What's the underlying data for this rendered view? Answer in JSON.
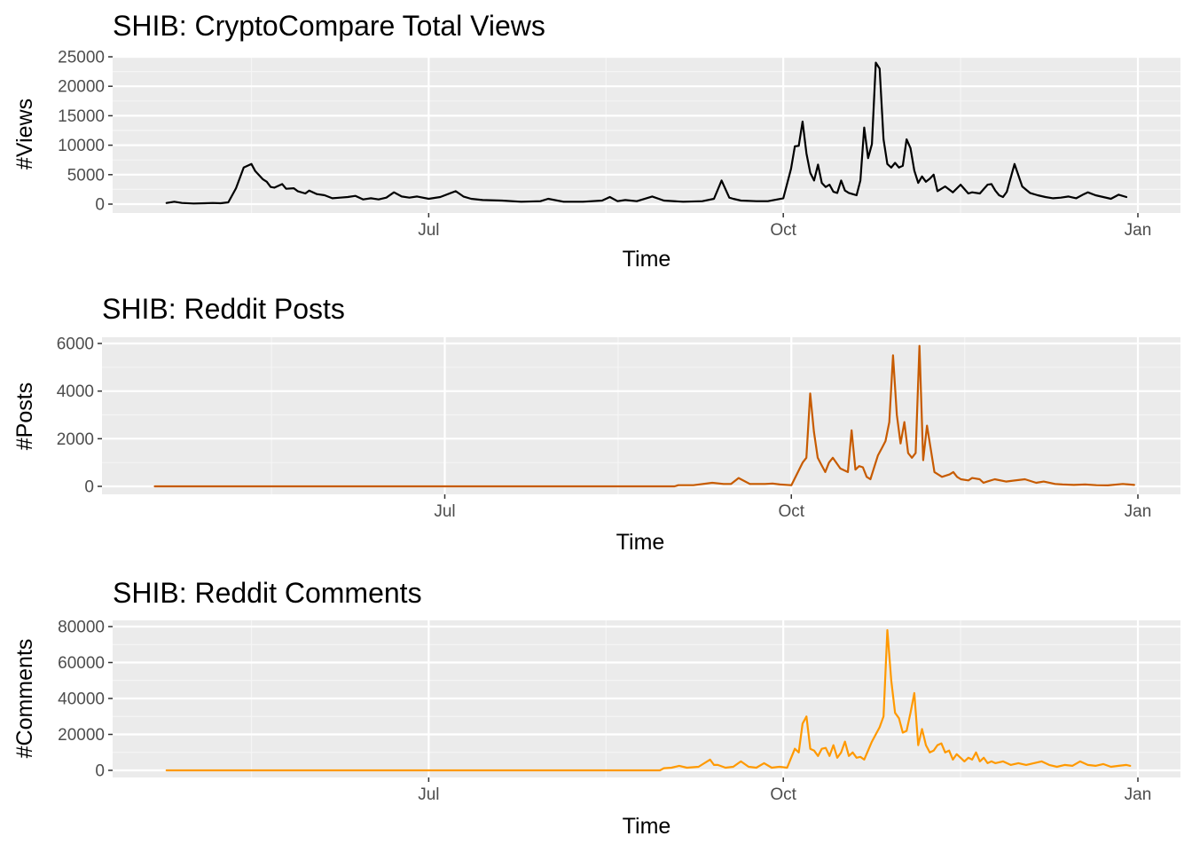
{
  "palette": {
    "panel_bg": "#ebebeb",
    "grid_major": "#ffffff",
    "grid_minor": "#f5f5f5",
    "tick_mark": "#333333"
  },
  "chart_data": [
    {
      "type": "line",
      "title": "SHIB: CryptoCompare Total Views",
      "xlabel": "Time",
      "ylabel": "#Views",
      "color": "#000000",
      "x_range": [
        "2021-04-10",
        "2022-01-01"
      ],
      "x_ticks": [
        {
          "date": "2021-07-01",
          "label": "Jul"
        },
        {
          "date": "2021-10-01",
          "label": "Oct"
        },
        {
          "date": "2022-01-01",
          "label": "Jan"
        }
      ],
      "ylim": [
        0,
        25000
      ],
      "y_ticks": [
        {
          "value": 0,
          "label": "0"
        },
        {
          "value": 5000,
          "label": "5000"
        },
        {
          "value": 10000,
          "label": "10000"
        },
        {
          "value": 15000,
          "label": "15000"
        },
        {
          "value": 20000,
          "label": "20000"
        },
        {
          "value": 25000,
          "label": "25000"
        }
      ],
      "series": [
        {
          "x": [
            "2021-04-24",
            "2021-04-26",
            "2021-04-28",
            "2021-05-01",
            "2021-05-04",
            "2021-05-06",
            "2021-05-08",
            "2021-05-10",
            "2021-05-12",
            "2021-05-14",
            "2021-05-16",
            "2021-05-17",
            "2021-05-19",
            "2021-05-20",
            "2021-05-21",
            "2021-05-22",
            "2021-05-24",
            "2021-05-25",
            "2021-05-27",
            "2021-05-28",
            "2021-05-30",
            "2021-05-31",
            "2021-06-02",
            "2021-06-04",
            "2021-06-06",
            "2021-06-08",
            "2021-06-10",
            "2021-06-12",
            "2021-06-14",
            "2021-06-16",
            "2021-06-18",
            "2021-06-20",
            "2021-06-22",
            "2021-06-24",
            "2021-06-26",
            "2021-06-28",
            "2021-07-01",
            "2021-07-04",
            "2021-07-08",
            "2021-07-10",
            "2021-07-12",
            "2021-07-15",
            "2021-07-20",
            "2021-07-25",
            "2021-07-30",
            "2021-08-01",
            "2021-08-05",
            "2021-08-10",
            "2021-08-15",
            "2021-08-17",
            "2021-08-19",
            "2021-08-21",
            "2021-08-24",
            "2021-08-28",
            "2021-08-31",
            "2021-09-05",
            "2021-09-10",
            "2021-09-13",
            "2021-09-15",
            "2021-09-17",
            "2021-09-18",
            "2021-09-20",
            "2021-09-24",
            "2021-09-27",
            "2021-10-01",
            "2021-10-03",
            "2021-10-04",
            "2021-10-05",
            "2021-10-06",
            "2021-10-07",
            "2021-10-08",
            "2021-10-09",
            "2021-10-10",
            "2021-10-11",
            "2021-10-12",
            "2021-10-13",
            "2021-10-14",
            "2021-10-15",
            "2021-10-16",
            "2021-10-17",
            "2021-10-18",
            "2021-10-19",
            "2021-10-20",
            "2021-10-21",
            "2021-10-22",
            "2021-10-23",
            "2021-10-24",
            "2021-10-25",
            "2021-10-26",
            "2021-10-27",
            "2021-10-28",
            "2021-10-29",
            "2021-10-30",
            "2021-10-31",
            "2021-11-01",
            "2021-11-02",
            "2021-11-03",
            "2021-11-04",
            "2021-11-05",
            "2021-11-06",
            "2021-11-07",
            "2021-11-08",
            "2021-11-09",
            "2021-11-10",
            "2021-11-12",
            "2021-11-14",
            "2021-11-16",
            "2021-11-18",
            "2021-11-19",
            "2021-11-21",
            "2021-11-23",
            "2021-11-24",
            "2021-11-25",
            "2021-11-26",
            "2021-11-27",
            "2021-11-28",
            "2021-11-30",
            "2021-12-02",
            "2021-12-04",
            "2021-12-06",
            "2021-12-08",
            "2021-12-10",
            "2021-12-12",
            "2021-12-14",
            "2021-12-16",
            "2021-12-18",
            "2021-12-19",
            "2021-12-21",
            "2021-12-23",
            "2021-12-25",
            "2021-12-27",
            "2021-12-29"
          ],
          "y": [
            200,
            400,
            200,
            100,
            150,
            200,
            150,
            300,
            2700,
            6200,
            6800,
            5600,
            4200,
            3800,
            2900,
            2800,
            3400,
            2600,
            2700,
            2200,
            1800,
            2300,
            1700,
            1500,
            1000,
            1100,
            1200,
            1400,
            800,
            1000,
            800,
            1100,
            2000,
            1300,
            1100,
            1300,
            900,
            1200,
            2200,
            1300,
            900,
            700,
            600,
            400,
            500,
            900,
            400,
            400,
            600,
            1200,
            500,
            700,
            500,
            1300,
            600,
            400,
            500,
            900,
            4000,
            1100,
            900,
            600,
            500,
            500,
            1000,
            6000,
            9800,
            9900,
            14000,
            8600,
            5300,
            4000,
            6700,
            3600,
            2900,
            3300,
            2100,
            1900,
            4000,
            2300,
            1900,
            1700,
            1500,
            4000,
            13000,
            7800,
            10200,
            24000,
            23000,
            11000,
            6800,
            6200,
            7000,
            6200,
            6500,
            11000,
            9500,
            5700,
            3600,
            4700,
            3800,
            4300,
            5000,
            2200,
            3000,
            2000,
            3300,
            1800,
            2000,
            1800,
            3300,
            3400,
            2300,
            1500,
            1200,
            2100,
            6800,
            3000,
            1900,
            1500,
            1200,
            1000,
            1100,
            1300,
            1000,
            1700,
            2000,
            1500,
            1200,
            900,
            1600,
            1200
          ]
        }
      ]
    },
    {
      "type": "line",
      "title": "SHIB: Reddit Posts",
      "xlabel": "Time",
      "ylabel": "#Posts",
      "color": "#c75b00",
      "x_range": [
        "2021-04-01",
        "2022-01-01"
      ],
      "x_ticks": [
        {
          "date": "2021-07-01",
          "label": "Jul"
        },
        {
          "date": "2021-10-01",
          "label": "Oct"
        },
        {
          "date": "2022-01-01",
          "label": "Jan"
        }
      ],
      "ylim": [
        0,
        6000
      ],
      "y_ticks": [
        {
          "value": 0,
          "label": "0"
        },
        {
          "value": 2000,
          "label": "2000"
        },
        {
          "value": 4000,
          "label": "4000"
        },
        {
          "value": 6000,
          "label": "6000"
        }
      ],
      "series": [
        {
          "x": [
            "2021-04-15",
            "2021-05-15",
            "2021-06-15",
            "2021-07-15",
            "2021-08-15",
            "2021-08-31",
            "2021-09-01",
            "2021-09-05",
            "2021-09-10",
            "2021-09-13",
            "2021-09-15",
            "2021-09-17",
            "2021-09-20",
            "2021-09-24",
            "2021-09-26",
            "2021-09-28",
            "2021-10-01",
            "2021-10-04",
            "2021-10-05",
            "2021-10-06",
            "2021-10-07",
            "2021-10-08",
            "2021-10-09",
            "2021-10-10",
            "2021-10-11",
            "2021-10-12",
            "2021-10-14",
            "2021-10-16",
            "2021-10-17",
            "2021-10-18",
            "2021-10-19",
            "2021-10-20",
            "2021-10-21",
            "2021-10-22",
            "2021-10-24",
            "2021-10-25",
            "2021-10-26",
            "2021-10-27",
            "2021-10-28",
            "2021-10-29",
            "2021-10-30",
            "2021-10-31",
            "2021-11-01",
            "2021-11-02",
            "2021-11-03",
            "2021-11-04",
            "2021-11-05",
            "2021-11-06",
            "2021-11-08",
            "2021-11-10",
            "2021-11-12",
            "2021-11-13",
            "2021-11-14",
            "2021-11-15",
            "2021-11-17",
            "2021-11-18",
            "2021-11-20",
            "2021-11-21",
            "2021-11-22",
            "2021-11-24",
            "2021-11-27",
            "2021-12-02",
            "2021-12-05",
            "2021-12-07",
            "2021-12-10",
            "2021-12-12",
            "2021-12-15",
            "2021-12-18",
            "2021-12-21",
            "2021-12-24",
            "2021-12-28",
            "2021-12-31"
          ],
          "y": [
            0,
            0,
            0,
            0,
            0,
            0,
            50,
            50,
            150,
            100,
            100,
            350,
            100,
            100,
            120,
            80,
            50,
            1000,
            1200,
            3900,
            2300,
            1200,
            900,
            600,
            1000,
            1200,
            750,
            600,
            2350,
            700,
            850,
            800,
            400,
            300,
            1300,
            1600,
            1900,
            2700,
            5500,
            3000,
            1800,
            2700,
            1400,
            1200,
            1400,
            5900,
            1100,
            2550,
            600,
            400,
            500,
            600,
            400,
            300,
            250,
            350,
            300,
            150,
            200,
            300,
            200,
            300,
            150,
            200,
            100,
            80,
            60,
            80,
            50,
            40,
            100,
            60
          ]
        }
      ]
    },
    {
      "type": "line",
      "title": "SHIB: Reddit Comments",
      "xlabel": "Time",
      "ylabel": "#Comments",
      "color": "#ff9900",
      "x_range": [
        "2021-04-10",
        "2022-01-01"
      ],
      "x_ticks": [
        {
          "date": "2021-07-01",
          "label": "Jul"
        },
        {
          "date": "2021-10-01",
          "label": "Oct"
        },
        {
          "date": "2022-01-01",
          "label": "Jan"
        }
      ],
      "ylim": [
        0,
        80000
      ],
      "y_ticks": [
        {
          "value": 0,
          "label": "0"
        },
        {
          "value": 20000,
          "label": "20000"
        },
        {
          "value": 40000,
          "label": "40000"
        },
        {
          "value": 60000,
          "label": "60000"
        },
        {
          "value": 80000,
          "label": "80000"
        }
      ],
      "series": [
        {
          "x": [
            "2021-04-24",
            "2021-05-15",
            "2021-06-15",
            "2021-07-15",
            "2021-08-15",
            "2021-08-30",
            "2021-08-31",
            "2021-09-02",
            "2021-09-04",
            "2021-09-06",
            "2021-09-09",
            "2021-09-12",
            "2021-09-13",
            "2021-09-14",
            "2021-09-16",
            "2021-09-18",
            "2021-09-20",
            "2021-09-22",
            "2021-09-24",
            "2021-09-26",
            "2021-09-28",
            "2021-09-30",
            "2021-10-02",
            "2021-10-04",
            "2021-10-05",
            "2021-10-06",
            "2021-10-07",
            "2021-10-08",
            "2021-10-09",
            "2021-10-10",
            "2021-10-11",
            "2021-10-12",
            "2021-10-13",
            "2021-10-14",
            "2021-10-15",
            "2021-10-16",
            "2021-10-17",
            "2021-10-18",
            "2021-10-19",
            "2021-10-20",
            "2021-10-21",
            "2021-10-22",
            "2021-10-24",
            "2021-10-26",
            "2021-10-27",
            "2021-10-28",
            "2021-10-29",
            "2021-10-30",
            "2021-10-31",
            "2021-11-01",
            "2021-11-02",
            "2021-11-03",
            "2021-11-04",
            "2021-11-05",
            "2021-11-06",
            "2021-11-07",
            "2021-11-08",
            "2021-11-09",
            "2021-11-10",
            "2021-11-11",
            "2021-11-12",
            "2021-11-13",
            "2021-11-14",
            "2021-11-15",
            "2021-11-16",
            "2021-11-17",
            "2021-11-18",
            "2021-11-19",
            "2021-11-20",
            "2021-11-21",
            "2021-11-22",
            "2021-11-23",
            "2021-11-24",
            "2021-11-25",
            "2021-11-27",
            "2021-11-29",
            "2021-12-01",
            "2021-12-03",
            "2021-12-05",
            "2021-12-07",
            "2021-12-09",
            "2021-12-11",
            "2021-12-13",
            "2021-12-15",
            "2021-12-17",
            "2021-12-19",
            "2021-12-21",
            "2021-12-23",
            "2021-12-25",
            "2021-12-27",
            "2021-12-29",
            "2021-12-30"
          ],
          "y": [
            0,
            0,
            0,
            0,
            0,
            0,
            1200,
            1500,
            2500,
            1500,
            2000,
            6000,
            3000,
            3000,
            1500,
            2000,
            5000,
            2000,
            1500,
            4000,
            1500,
            2000,
            1500,
            12000,
            10000,
            26000,
            30000,
            12000,
            11000,
            8000,
            12000,
            12500,
            8000,
            14000,
            7000,
            10000,
            16000,
            8000,
            10000,
            7000,
            7500,
            6000,
            16000,
            24000,
            30000,
            78000,
            50000,
            32000,
            29000,
            21000,
            22000,
            32000,
            43000,
            14000,
            23000,
            14000,
            10000,
            11000,
            14000,
            15000,
            10000,
            11000,
            6000,
            9000,
            7000,
            5000,
            7000,
            6000,
            10000,
            5000,
            7000,
            4000,
            5000,
            4000,
            5000,
            3000,
            4000,
            3000,
            4000,
            5000,
            3000,
            2000,
            3000,
            2500,
            5000,
            3000,
            2500,
            3500,
            2000,
            2500,
            3000,
            2500
          ]
        }
      ]
    }
  ]
}
